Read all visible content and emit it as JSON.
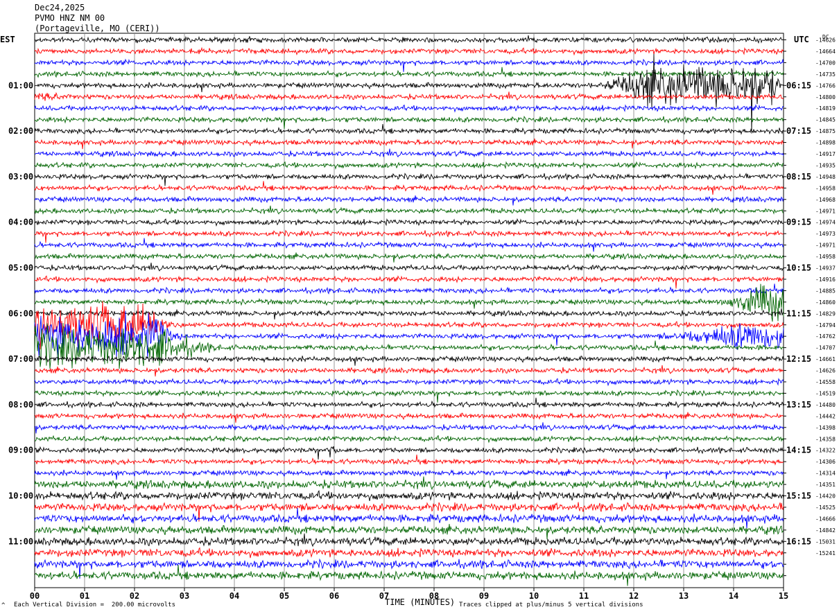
{
  "header": {
    "date": "Dec24,2025",
    "station": "PVMO HNZ NM 00",
    "location": "(Portageville, MO (CERI))"
  },
  "left_timezone": "EST",
  "right_timezone": "UTC",
  "dc_label": "DC",
  "footer": {
    "scale_note": "Each Vertical Division =  200.00 microvolts",
    "clip_note": "Traces clipped at plus/minus 5 vertical divisions",
    "corner_mark": "^"
  },
  "colors": {
    "black": "#000000",
    "red": "#ff0000",
    "blue": "#0000ff",
    "green": "#006400",
    "grid": "#808080"
  },
  "chart_data": {
    "type": "line",
    "title": "PVMO HNZ NM 00",
    "xlabel": "TIME (MINUTES)",
    "ylabel": "",
    "xlim": [
      0,
      15
    ],
    "x_ticks": [
      "00",
      "01",
      "02",
      "03",
      "04",
      "05",
      "06",
      "07",
      "08",
      "09",
      "10",
      "11",
      "12",
      "13",
      "14",
      "15"
    ],
    "trace_count": 48,
    "trace_color_cycle": [
      "black",
      "red",
      "blue",
      "green"
    ],
    "left_hour_labels": [
      "01:00",
      "02:00",
      "03:00",
      "04:00",
      "05:00",
      "06:00",
      "07:00",
      "08:00",
      "09:00",
      "10:00",
      "11:00"
    ],
    "right_hour_labels": [
      "06:15",
      "07:15",
      "08:15",
      "09:15",
      "10:15",
      "11:15",
      "12:15",
      "13:15",
      "14:15",
      "15:15",
      "16:15"
    ],
    "dc_offsets": [
      "-14626",
      "-14664",
      "-14700",
      "-14735",
      "-14766",
      "-14800",
      "-14819",
      "-14845",
      "-14875",
      "-14898",
      "-14917",
      "-14935",
      "-14948",
      "-14958",
      "-14968",
      "-14971",
      "-14974",
      "-14973",
      "-14971",
      "-14958",
      "-14937",
      "-14916",
      "-14885",
      "-14860",
      "-14829",
      "-14794",
      "-14762",
      "-14707",
      "-14661",
      "-14626",
      "-14558",
      "-14519",
      "-14480",
      "-14442",
      "-14398",
      "-14358",
      "-14322",
      "-14306",
      "-14314",
      "-14351",
      "-14420",
      "-14525",
      "-14666",
      "-14842",
      "-15031",
      "-15241"
    ],
    "events": [
      {
        "trace": 4,
        "start": 11.0,
        "end": 15.0,
        "peak_start": 12.2,
        "peak_end": 14.8,
        "amp": 8,
        "clip": true
      },
      {
        "trace": 5,
        "start": 0.0,
        "end": 1.2,
        "peak_start": 0.0,
        "peak_end": 0.3,
        "amp": 1.6
      },
      {
        "trace": 25,
        "start": 0.0,
        "end": 3.0,
        "peak_start": 0.0,
        "peak_end": 2.3,
        "amp": 8,
        "clip": true
      },
      {
        "trace": 26,
        "start": 0.0,
        "end": 3.0,
        "peak_start": 0.0,
        "peak_end": 2.5,
        "amp": 8,
        "clip": true
      },
      {
        "trace": 27,
        "start": 0.0,
        "end": 4.0,
        "peak_start": 0.0,
        "peak_end": 2.5,
        "amp": 8,
        "clip": true
      },
      {
        "trace": 23,
        "start": 13.5,
        "end": 15.0,
        "peak_start": 14.5,
        "peak_end": 15.0,
        "amp": 7,
        "clip": true
      },
      {
        "trace": 26,
        "start": 12.0,
        "end": 15.0,
        "peak_start": 14.2,
        "peak_end": 15.0,
        "amp": 6,
        "clip": true
      },
      {
        "trace": 36,
        "start": 5.8,
        "end": 6.2,
        "peak_start": 5.9,
        "peak_end": 6.0,
        "amp": 2.2
      },
      {
        "trace": 0,
        "start": 4.0,
        "end": 4.6,
        "peak_start": 4.1,
        "peak_end": 4.4,
        "amp": 1.2
      }
    ]
  }
}
